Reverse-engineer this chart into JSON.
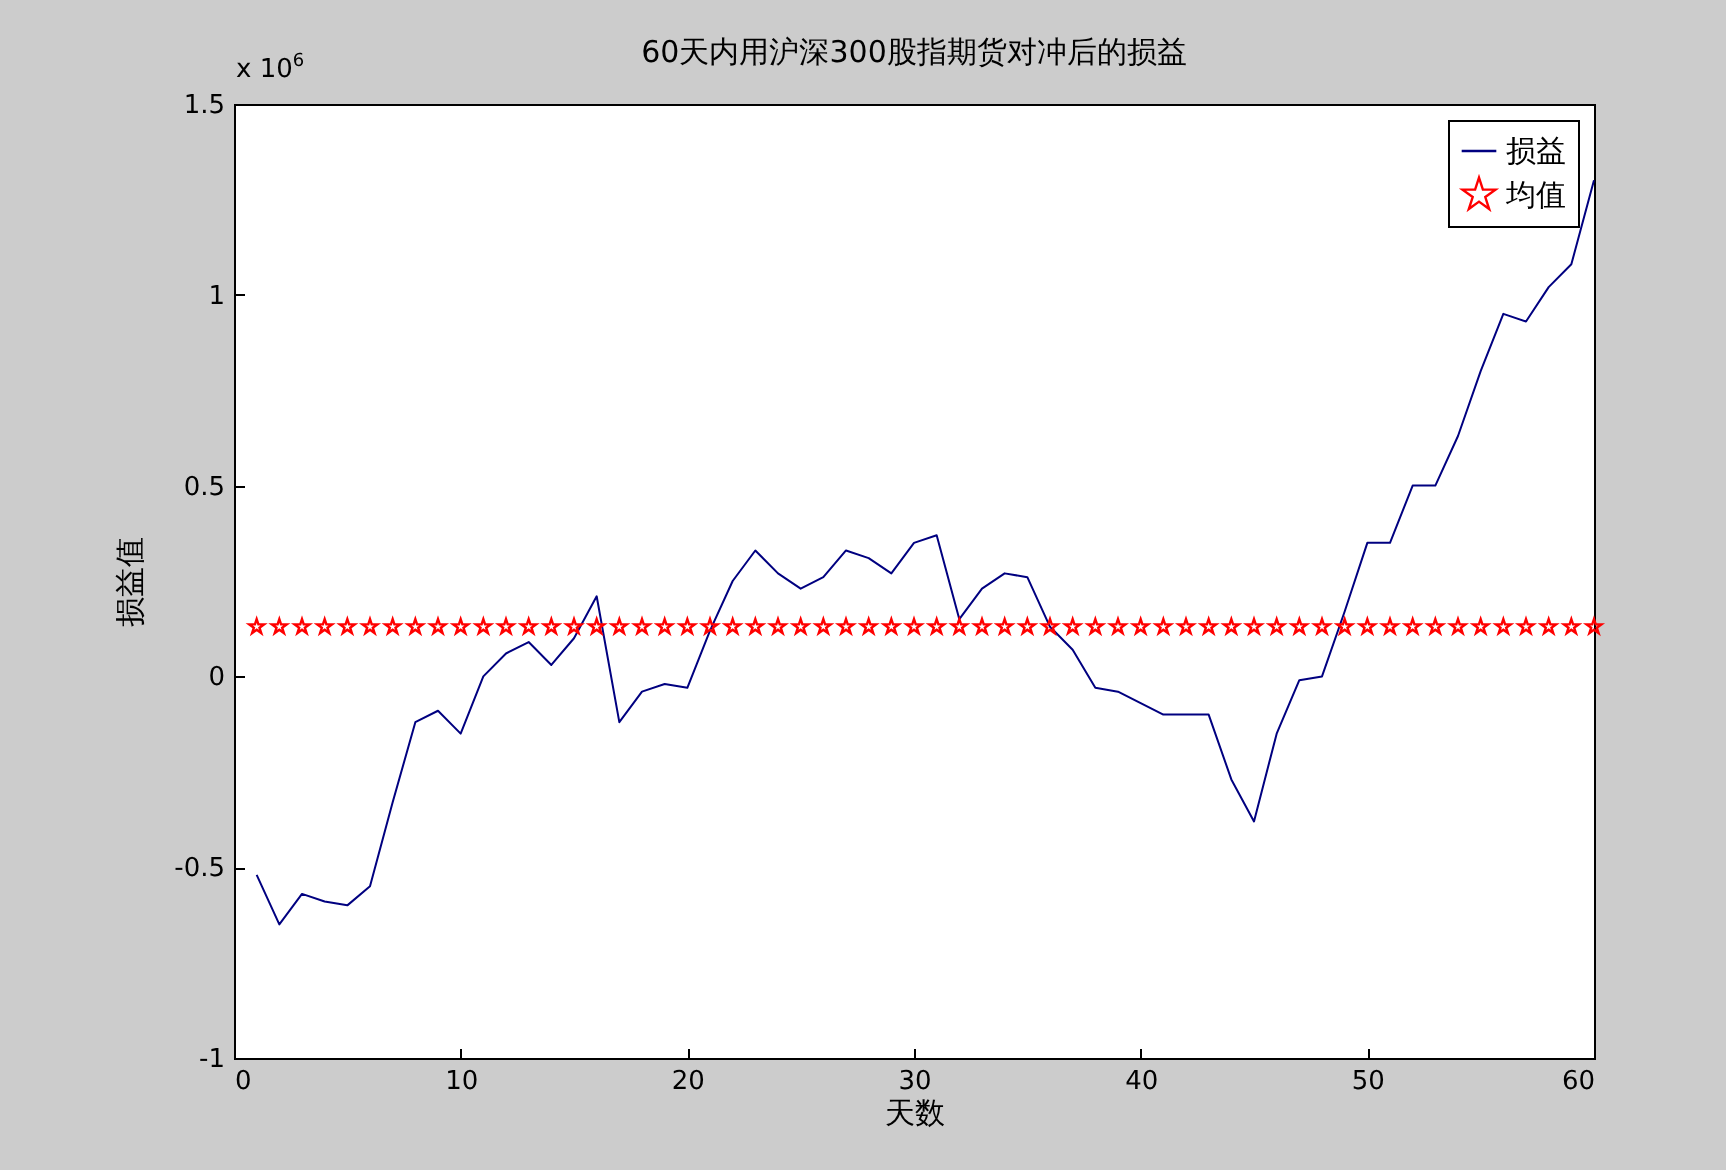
{
  "chart_data": {
    "type": "line",
    "title": "60天内用沪深300股指期货对冲后的损益",
    "xlabel": "天数",
    "ylabel": "损益值",
    "annotations": [
      "x 10$^{6}$"
    ],
    "x": [
      1,
      2,
      3,
      4,
      5,
      6,
      7,
      8,
      9,
      10,
      11,
      12,
      13,
      14,
      15,
      16,
      17,
      18,
      19,
      20,
      21,
      22,
      23,
      24,
      25,
      26,
      27,
      28,
      29,
      30,
      31,
      32,
      33,
      34,
      35,
      36,
      37,
      38,
      39,
      40,
      41,
      42,
      43,
      44,
      45,
      46,
      47,
      48,
      49,
      50,
      51,
      52,
      53,
      54,
      55,
      56,
      57,
      58,
      59,
      60
    ],
    "series": [
      {
        "name": "损益",
        "color": "#000080",
        "marker": "none",
        "values": [
          -0.52,
          -0.65,
          -0.57,
          -0.59,
          -0.6,
          -0.55,
          -0.33,
          -0.12,
          -0.09,
          -0.15,
          0.0,
          0.06,
          0.09,
          0.03,
          0.1,
          0.21,
          -0.12,
          -0.04,
          -0.02,
          -0.03,
          0.12,
          0.25,
          0.33,
          0.27,
          0.23,
          0.26,
          0.33,
          0.31,
          0.27,
          0.35,
          0.37,
          0.15,
          0.23,
          0.27,
          0.26,
          0.13,
          0.07,
          -0.03,
          -0.04,
          -0.07,
          -0.1,
          -0.1,
          -0.1,
          -0.27,
          -0.38,
          -0.15,
          -0.01,
          0.0,
          0.17,
          0.35,
          0.35,
          0.5,
          0.5,
          0.63,
          0.8,
          0.95,
          0.93,
          1.02,
          1.08,
          1.3
        ]
      },
      {
        "name": "均值",
        "type": "scatter",
        "color": "#ff0000",
        "marker": "star",
        "values": [
          0.13,
          0.13,
          0.13,
          0.13,
          0.13,
          0.13,
          0.13,
          0.13,
          0.13,
          0.13,
          0.13,
          0.13,
          0.13,
          0.13,
          0.13,
          0.13,
          0.13,
          0.13,
          0.13,
          0.13,
          0.13,
          0.13,
          0.13,
          0.13,
          0.13,
          0.13,
          0.13,
          0.13,
          0.13,
          0.13,
          0.13,
          0.13,
          0.13,
          0.13,
          0.13,
          0.13,
          0.13,
          0.13,
          0.13,
          0.13,
          0.13,
          0.13,
          0.13,
          0.13,
          0.13,
          0.13,
          0.13,
          0.13,
          0.13,
          0.13,
          0.13,
          0.13,
          0.13,
          0.13,
          0.13,
          0.13,
          0.13,
          0.13,
          0.13,
          0.13
        ]
      }
    ],
    "xlim": [
      0,
      60
    ],
    "xticks": [
      0,
      10,
      20,
      30,
      40,
      50,
      60
    ],
    "ylim": [
      -1,
      1.5
    ],
    "yticks": [
      -1,
      -0.5,
      0,
      0.5,
      1,
      1.5
    ],
    "grid": false,
    "legend": "top right"
  }
}
